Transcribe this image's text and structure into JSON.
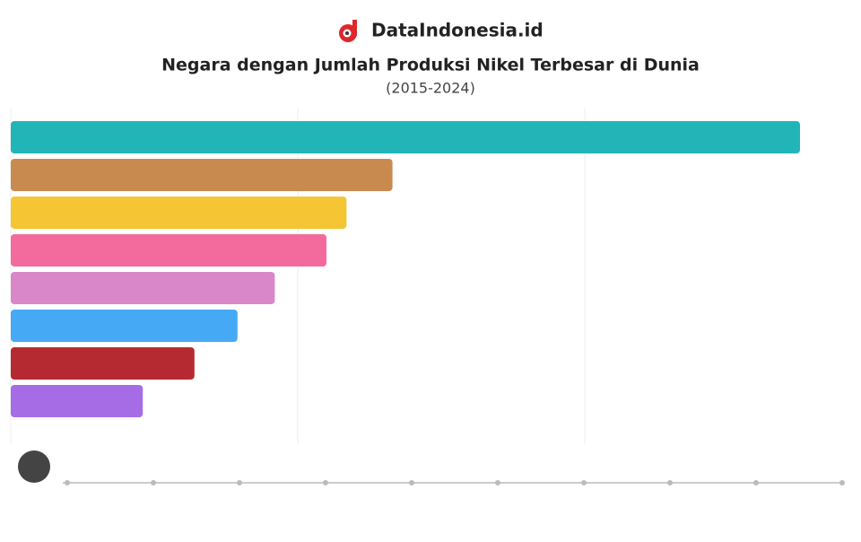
{
  "brand": "DataIndonesia.id",
  "chart_data": {
    "type": "hbar",
    "title": "Negara dengan Jumlah Produksi Nikel Terbesar di Dunia",
    "subtitle": "(2015-2024)",
    "categories": [
      null,
      null,
      null,
      null,
      null,
      null,
      null,
      null
    ],
    "values": [
      2.75,
      1.33,
      1.17,
      1.1,
      0.92,
      0.79,
      0.64,
      0.46
    ],
    "colors": [
      "#22b5b8",
      "#c98a4f",
      "#f5c534",
      "#f26b9c",
      "#d987c9",
      "#45a9f5",
      "#b52a30",
      "#a66ce6"
    ],
    "xlim": [
      0,
      2.9
    ],
    "xticks": [
      0,
      1,
      2
    ],
    "grid": true
  }
}
